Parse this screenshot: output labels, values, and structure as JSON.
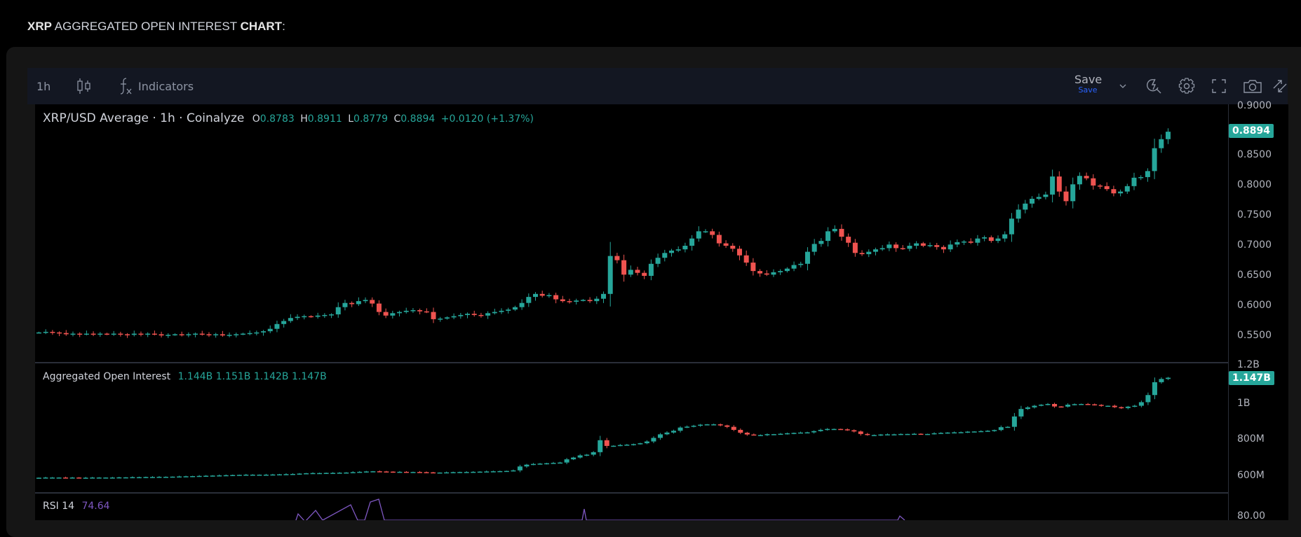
{
  "page": {
    "title_parts": [
      {
        "text": "XRP",
        "bold": true
      },
      {
        "text": " AGGREGATED OPEN INTEREST ",
        "bold": false
      },
      {
        "text": "CHART",
        "bold": true
      },
      {
        "text": ":",
        "bold": false
      }
    ]
  },
  "toolbar": {
    "interval": "1h",
    "chart_type_icon": "candles-icon",
    "indicators_label": "Indicators",
    "indicators_icon": "fx-icon",
    "save_label": "Save",
    "save_sublabel": "Save",
    "right_icons": [
      "save-dropdown-chevron-icon",
      "quick-search-icon",
      "gear-icon",
      "fullscreen-icon",
      "camera-icon",
      "popout-arrows-icon"
    ]
  },
  "main_pane": {
    "symbol": "XRP/USD Average · 1h · Coinalyze",
    "ohlc": {
      "O": "0.8783",
      "H": "0.8911",
      "L": "0.8779",
      "C": "0.8894"
    },
    "change": "+0.0120 (+1.37%)",
    "last_price_tag": "0.8894",
    "axis_ticks": [
      "0.9000",
      "0.8500",
      "0.8000",
      "0.7500",
      "0.7000",
      "0.6500",
      "0.6000",
      "0.5500"
    ]
  },
  "oi_pane": {
    "title": "Aggregated Open Interest",
    "values": [
      "1.144B",
      "1.151B",
      "1.142B",
      "1.147B"
    ],
    "last_value_tag": "1.147B",
    "axis_ticks": [
      "1.2B",
      "1B",
      "800M",
      "600M"
    ]
  },
  "rsi_pane": {
    "title": "RSI 14",
    "value": "74.64",
    "axis_ticks": [
      "80.00"
    ]
  },
  "colors": {
    "up": "#26a69a",
    "down": "#ef5350",
    "rsi": "#7e57c2",
    "save_blue": "#2962ff",
    "toolbar_bg": "#131722"
  },
  "chart_data": [
    {
      "type": "candlestick",
      "title": "XRP/USD Average · 1h · Coinalyze",
      "ylim": [
        0.52,
        0.905
      ],
      "y_ticks": [
        0.55,
        0.6,
        0.65,
        0.7,
        0.75,
        0.8,
        0.85,
        0.9
      ],
      "close": [
        0.556,
        0.557,
        0.556,
        0.555,
        0.553,
        0.554,
        0.553,
        0.554,
        0.553,
        0.554,
        0.553,
        0.554,
        0.553,
        0.552,
        0.554,
        0.553,
        0.554,
        0.553,
        0.551,
        0.552,
        0.553,
        0.552,
        0.553,
        0.554,
        0.553,
        0.552,
        0.553,
        0.551,
        0.552,
        0.553,
        0.554,
        0.555,
        0.556,
        0.558,
        0.562,
        0.57,
        0.575,
        0.58,
        0.582,
        0.583,
        0.582,
        0.584,
        0.585,
        0.586,
        0.598,
        0.605,
        0.603,
        0.608,
        0.61,
        0.604,
        0.59,
        0.584,
        0.588,
        0.59,
        0.592,
        0.593,
        0.591,
        0.59,
        0.578,
        0.579,
        0.581,
        0.583,
        0.585,
        0.587,
        0.585,
        0.584,
        0.588,
        0.59,
        0.592,
        0.594,
        0.598,
        0.605,
        0.615,
        0.62,
        0.617,
        0.618,
        0.611,
        0.608,
        0.607,
        0.609,
        0.61,
        0.608,
        0.612,
        0.62,
        0.683,
        0.676,
        0.652,
        0.66,
        0.655,
        0.65,
        0.67,
        0.68,
        0.688,
        0.692,
        0.694,
        0.7,
        0.712,
        0.724,
        0.724,
        0.718,
        0.704,
        0.7,
        0.695,
        0.684,
        0.672,
        0.658,
        0.654,
        0.652,
        0.656,
        0.658,
        0.662,
        0.668,
        0.67,
        0.69,
        0.703,
        0.708,
        0.724,
        0.728,
        0.715,
        0.705,
        0.688,
        0.686,
        0.69,
        0.694,
        0.696,
        0.702,
        0.696,
        0.695,
        0.7,
        0.704,
        0.7,
        0.701,
        0.698,
        0.694,
        0.702,
        0.706,
        0.707,
        0.705,
        0.712,
        0.714,
        0.708,
        0.712,
        0.719,
        0.745,
        0.76,
        0.77,
        0.778,
        0.781,
        0.785,
        0.815,
        0.79,
        0.774,
        0.802,
        0.816,
        0.812,
        0.8,
        0.799,
        0.794,
        0.787,
        0.79,
        0.799,
        0.813,
        0.814,
        0.824,
        0.862,
        0.877,
        0.8894
      ],
      "last": 0.8894
    },
    {
      "type": "candlestick",
      "title": "Aggregated Open Interest",
      "ylim": [
        530,
        1230
      ],
      "y_ticks_labels": [
        "600M",
        "800M",
        "1B",
        "1.2B"
      ],
      "close": [
        587,
        588,
        588,
        588,
        587,
        588,
        587,
        587,
        588,
        588,
        588,
        588,
        589,
        589,
        590,
        590,
        591,
        591,
        592,
        592,
        593,
        594,
        595,
        596,
        597,
        598,
        599,
        600,
        601,
        602,
        603,
        604,
        604,
        604,
        604,
        605,
        606,
        607,
        608,
        610,
        612,
        613,
        613,
        614,
        614,
        615,
        616,
        618,
        620,
        622,
        623,
        622,
        621,
        620,
        620,
        619,
        619,
        618,
        617,
        616,
        616,
        617,
        618,
        619,
        619,
        620,
        621,
        622,
        623,
        624,
        625,
        628,
        650,
        660,
        664,
        666,
        668,
        670,
        672,
        690,
        700,
        712,
        716,
        730,
        797,
        765,
        766,
        770,
        772,
        775,
        780,
        790,
        810,
        830,
        840,
        850,
        868,
        873,
        878,
        884,
        886,
        886,
        880,
        872,
        855,
        839,
        829,
        826,
        826,
        831,
        831,
        833,
        836,
        838,
        840,
        841,
        848,
        855,
        860,
        860,
        858,
        853,
        846,
        832,
        826,
        826,
        829,
        830,
        830,
        832,
        832,
        833,
        832,
        832,
        836,
        838,
        840,
        841,
        842,
        845,
        846,
        848,
        850,
        854,
        870,
        872,
        930,
        972,
        981,
        990,
        996,
        1000,
        986,
        985,
        996,
        999,
        1000,
        998,
        995,
        990,
        990,
        982,
        977,
        985,
        990,
        1010,
        1050,
        1122,
        1140,
        1147
      ],
      "last": "1.147B"
    },
    {
      "type": "line",
      "title": "RSI 14",
      "last": 74.64,
      "y_ticks": [
        80.0
      ]
    }
  ]
}
